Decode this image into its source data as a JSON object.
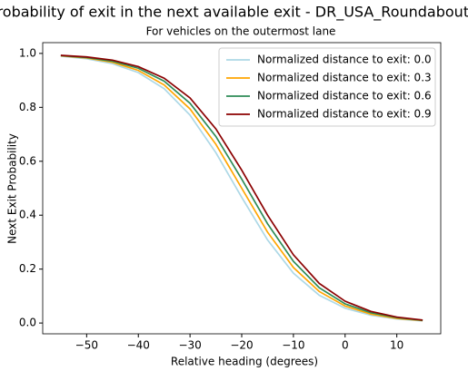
{
  "chart_data": {
    "type": "line",
    "title": "Probability of exit in the next available exit - DR_USA_Roundabout_FT",
    "subtitle": "For vehicles on the outermost lane",
    "x_label": "Relative heading (degrees)",
    "y_label": "Next Exit Probability",
    "x": [
      -55,
      -50,
      -45,
      -40,
      -35,
      -30,
      -25,
      -20,
      -15,
      -10,
      -5,
      0,
      5,
      10,
      15
    ],
    "series": [
      {
        "name": "Normalized distance to exit: 0.0",
        "color": "#add8e6",
        "values": [
          0.99,
          0.98,
          0.962,
          0.929,
          0.869,
          0.771,
          0.632,
          0.466,
          0.308,
          0.185,
          0.103,
          0.055,
          0.029,
          0.015,
          0.008
        ]
      },
      {
        "name": "Normalized distance to exit: 0.3",
        "color": "#ffa500",
        "values": [
          0.991,
          0.983,
          0.967,
          0.937,
          0.883,
          0.794,
          0.663,
          0.5,
          0.337,
          0.206,
          0.117,
          0.063,
          0.033,
          0.017,
          0.009
        ]
      },
      {
        "name": "Normalized distance to exit: 0.6",
        "color": "#2e8b57",
        "values": [
          0.992,
          0.985,
          0.971,
          0.945,
          0.897,
          0.815,
          0.692,
          0.534,
          0.368,
          0.229,
          0.131,
          0.071,
          0.038,
          0.02,
          0.01
        ]
      },
      {
        "name": "Normalized distance to exit: 0.9",
        "color": "#8b0000",
        "values": [
          0.993,
          0.987,
          0.975,
          0.951,
          0.908,
          0.835,
          0.72,
          0.567,
          0.4,
          0.253,
          0.147,
          0.081,
          0.043,
          0.022,
          0.011
        ]
      }
    ],
    "xlim": [
      -58.5,
      18.5
    ],
    "xticks": [
      {
        "value": -50,
        "label": "−50"
      },
      {
        "value": -40,
        "label": "−40"
      },
      {
        "value": -30,
        "label": "−30"
      },
      {
        "value": -20,
        "label": "−20"
      },
      {
        "value": -10,
        "label": "−10"
      },
      0,
      10
    ],
    "ylim": [
      -0.04,
      1.04
    ],
    "yticks": [
      {
        "value": 0,
        "label": "0.0"
      },
      0.2,
      0.4,
      0.6,
      0.8,
      {
        "value": 1,
        "label": "1.0"
      }
    ],
    "legend": "upper right"
  }
}
